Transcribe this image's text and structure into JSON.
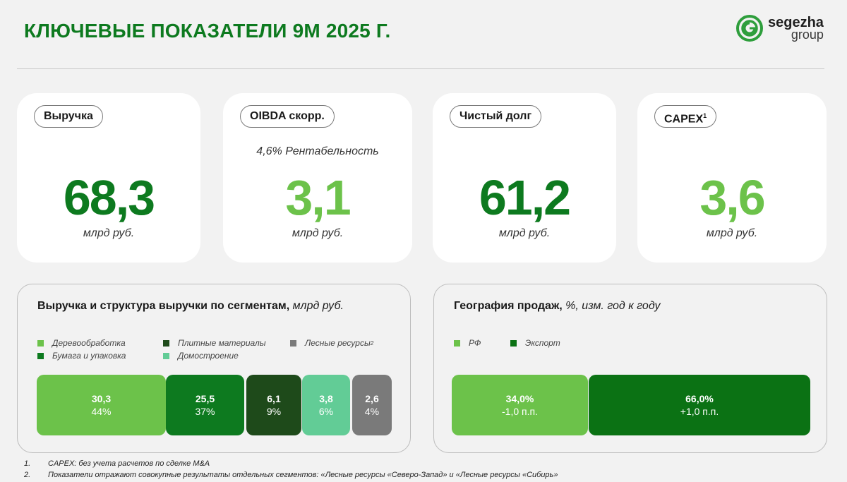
{
  "header": {
    "title": "КЛЮЧЕВЫЕ ПОКАЗАТЕЛИ 9М 2025 Г.",
    "logo_name": "segezha",
    "logo_sub": "group"
  },
  "colors": {
    "dark_green": "#0d7a1f",
    "light_green": "#6cc24a",
    "wood": "#6cc24a",
    "paper": "#0d7a1f",
    "panels": "#1e4a1a",
    "houses": "#62cc96",
    "forest": "#7a7a7a",
    "rf": "#6cc24a",
    "export": "#0b7214"
  },
  "kpis": {
    "revenue": {
      "label": "Выручка",
      "value": "68,3",
      "unit": "млрд руб."
    },
    "oibda": {
      "label": "OIBDA скорр.",
      "note": "4,6% Рентабельность",
      "value": "3,1",
      "unit": "млрд руб."
    },
    "debt": {
      "label": "Чистый долг",
      "value": "61,2",
      "unit": "млрд руб."
    },
    "capex": {
      "label": "CAPEX",
      "label_sup": "1",
      "value": "3,6",
      "unit": "млрд руб."
    }
  },
  "segments_panel": {
    "title_bold": "Выручка и структура выручки по сегментам,",
    "title_italic": " млрд руб.",
    "legend": {
      "wood": "Деревообработка",
      "paper": "Бумага и упаковка",
      "panels": "Плитные материалы",
      "houses": "Домостроение",
      "forest": "Лесные ресурсы",
      "forest_sup": "2"
    },
    "bars": {
      "wood": {
        "value": "30,3",
        "pct": "44%"
      },
      "paper": {
        "value": "25,5",
        "pct": "37%"
      },
      "panels": {
        "value": "6,1",
        "pct": "9%"
      },
      "houses": {
        "value": "3,8",
        "pct": "6%"
      },
      "forest": {
        "value": "2,6",
        "pct": "4%"
      }
    }
  },
  "geo_panel": {
    "title_bold": "География продаж,",
    "title_italic": " %, изм. год к году",
    "legend": {
      "rf": "РФ",
      "export": "Экспорт"
    },
    "bars": {
      "rf": {
        "value": "34,0%",
        "change": "-1,0 п.п."
      },
      "export": {
        "value": "66,0%",
        "change": "+1,0 п.п."
      }
    }
  },
  "footnotes": [
    {
      "num": "1.",
      "text": "CAPEX: без учета расчетов по сделке M&A"
    },
    {
      "num": "2.",
      "text": "Показатели отражают совокупные результаты отдельных сегментов: «Лесные ресурсы «Северо-Запад» и «Лесные ресурсы «Сибирь»"
    }
  ]
}
